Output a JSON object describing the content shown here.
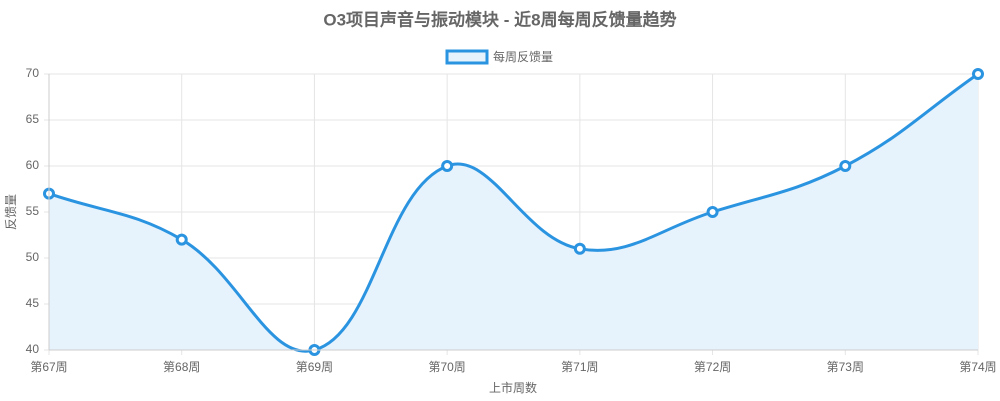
{
  "chart_data": {
    "type": "line",
    "title": "O3项目声音与振动模块 - 近8周每周反馈量趋势",
    "categories": [
      "第67周",
      "第68周",
      "第69周",
      "第70周",
      "第71周",
      "第72周",
      "第73周",
      "第74周"
    ],
    "series": [
      {
        "name": "每周反馈量",
        "color": "#2b94e1",
        "values": [
          57,
          52,
          40,
          60,
          51,
          55,
          60,
          70
        ]
      }
    ],
    "ylim": [
      40,
      70
    ],
    "yticks": [
      40,
      45,
      50,
      55,
      60,
      65,
      70
    ],
    "grid": true,
    "fill": true,
    "x_label": "上市周数",
    "y_label": "反馈量",
    "legend": "top"
  }
}
